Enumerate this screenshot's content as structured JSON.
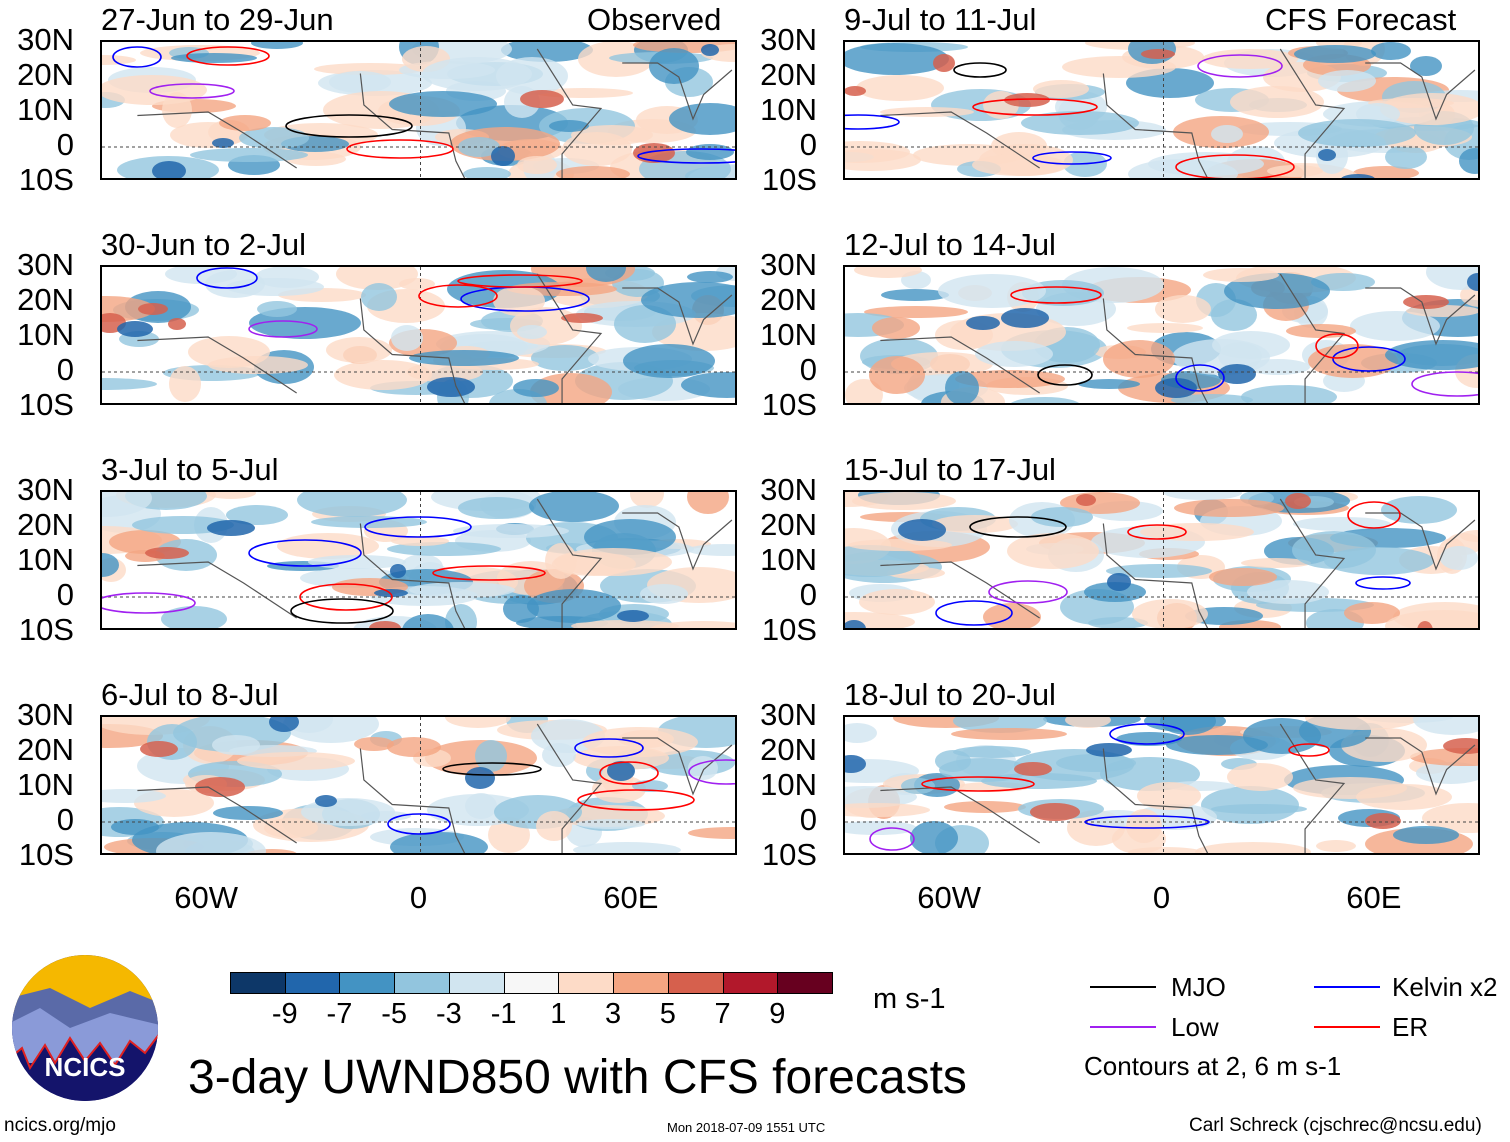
{
  "header": {
    "left_label": "Observed",
    "right_label": "CFS Forecast"
  },
  "panels": [
    {
      "title": "27-Jun to 29-Jun",
      "column": "observed"
    },
    {
      "title": "30-Jun to 2-Jul",
      "column": "observed"
    },
    {
      "title": "3-Jul to 5-Jul",
      "column": "observed"
    },
    {
      "title": "6-Jul to 8-Jul",
      "column": "observed"
    },
    {
      "title": "9-Jul to 11-Jul",
      "column": "forecast"
    },
    {
      "title": "12-Jul to 14-Jul",
      "column": "forecast"
    },
    {
      "title": "15-Jul to 17-Jul",
      "column": "forecast"
    },
    {
      "title": "18-Jul to 20-Jul",
      "column": "forecast"
    }
  ],
  "lat_labels": [
    "30N",
    "20N",
    "10N",
    "0",
    "10S"
  ],
  "lon_labels": [
    "60W",
    "0",
    "60E"
  ],
  "map_extent": {
    "lon": [
      -90,
      90
    ],
    "lat": [
      -10,
      30
    ]
  },
  "colorbar": {
    "colors": [
      "#0d3768",
      "#2166ac",
      "#4393c3",
      "#92c5de",
      "#d1e5f0",
      "#f7f7f7",
      "#fddbc7",
      "#f4a582",
      "#d6604d",
      "#b2182b",
      "#67001f"
    ],
    "labels": [
      "-9",
      "-7",
      "-5",
      "-3",
      "-1",
      "1",
      "3",
      "5",
      "7",
      "9"
    ],
    "units": "m s-1"
  },
  "legend": {
    "items": [
      {
        "label": "MJO",
        "color": "#000000"
      },
      {
        "label": "Low",
        "color": "#a020f0"
      },
      {
        "label": "Kelvin x2",
        "color": "#0000ff"
      },
      {
        "label": "ER",
        "color": "#ff0000"
      }
    ],
    "note": "Contours at 2, 6 m s-1"
  },
  "title": "3-day UWND850 with CFS forecasts",
  "logo_text": "NCICS",
  "footer": {
    "url": "ncics.org/mjo",
    "timestamp": "Mon 2018-07-09 1551 UTC",
    "author": "Carl Schreck (cjschrec@ncsu.edu)"
  }
}
